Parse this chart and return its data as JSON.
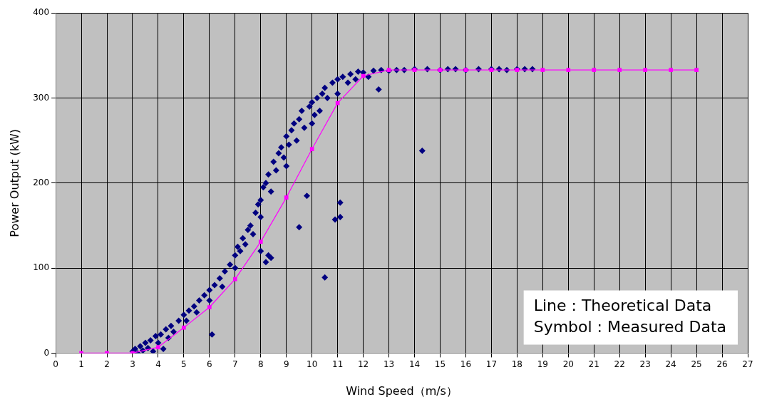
{
  "chart_data": {
    "type": "scatter",
    "xlabel": "Wind Speed（m/s）",
    "ylabel": "Power Output (kW)",
    "xlim": [
      0,
      27
    ],
    "xticks": [
      0,
      1,
      2,
      3,
      4,
      5,
      6,
      7,
      8,
      9,
      10,
      11,
      12,
      13,
      14,
      15,
      16,
      17,
      18,
      19,
      20,
      21,
      22,
      23,
      24,
      25,
      26,
      27
    ],
    "ylim": [
      0,
      400
    ],
    "yticks": [
      0,
      100,
      200,
      300,
      400
    ],
    "grid": true,
    "legend": false,
    "annotations": [
      "Line : Theoretical Data",
      "Symbol : Measured Data"
    ],
    "series": [
      {
        "type": "scatter",
        "color": "#000080",
        "marker": "diamond",
        "x": [
          3.0,
          3.1,
          3.2,
          3.3,
          3.4,
          3.5,
          3.6,
          3.7,
          3.8,
          3.9,
          4.0,
          4.1,
          4.2,
          4.3,
          4.4,
          4.5,
          4.6,
          4.8,
          5.0,
          5.1,
          5.2,
          5.4,
          5.5,
          5.6,
          5.8,
          6.0,
          6.0,
          6.1,
          6.2,
          6.4,
          6.5,
          6.6,
          6.8,
          7.0,
          7.0,
          7.1,
          7.2,
          7.3,
          7.4,
          7.5,
          7.6,
          7.7,
          7.8,
          7.9,
          8.0,
          8.0,
          8.0,
          8.1,
          8.2,
          8.2,
          8.3,
          8.4,
          8.3,
          8.4,
          8.5,
          8.6,
          8.7,
          8.8,
          8.9,
          9.0,
          9.0,
          9.1,
          9.2,
          9.3,
          9.4,
          9.5,
          9.5,
          9.6,
          9.7,
          9.8,
          9.9,
          10.0,
          10.0,
          10.1,
          10.2,
          10.3,
          10.4,
          10.5,
          10.5,
          10.6,
          10.8,
          10.9,
          11.0,
          11.0,
          11.1,
          11.1,
          11.2,
          11.4,
          11.5,
          11.7,
          11.8,
          12.0,
          12.2,
          12.4,
          12.6,
          12.7,
          13.0,
          13.3,
          13.6,
          14.0,
          14.3,
          14.5,
          15.0,
          15.3,
          15.6,
          16.0,
          16.5,
          17.0,
          17.3,
          17.6,
          18.0,
          18.3,
          18.6
        ],
        "values": [
          2,
          5,
          0,
          8,
          3,
          12,
          6,
          15,
          2,
          20,
          12,
          22,
          5,
          28,
          18,
          32,
          25,
          38,
          45,
          38,
          50,
          55,
          48,
          62,
          68,
          74,
          62,
          22,
          80,
          88,
          78,
          96,
          104,
          115,
          100,
          125,
          120,
          135,
          128,
          145,
          150,
          140,
          165,
          175,
          180,
          160,
          120,
          195,
          200,
          107,
          115,
          112,
          210,
          190,
          225,
          215,
          235,
          242,
          230,
          255,
          220,
          245,
          262,
          270,
          250,
          275,
          148,
          285,
          265,
          185,
          290,
          295,
          270,
          280,
          300,
          285,
          305,
          89,
          312,
          300,
          318,
          157,
          322,
          305,
          177,
          160,
          325,
          318,
          328,
          322,
          331,
          330,
          325,
          332,
          310,
          333,
          332,
          333,
          333,
          334,
          238,
          334,
          333,
          334,
          334,
          333,
          334,
          334,
          334,
          333,
          334,
          334,
          334
        ]
      },
      {
        "type": "line",
        "color": "#ff00ff",
        "marker": "square",
        "x": [
          1,
          2,
          3,
          4,
          5,
          6,
          7,
          8,
          9,
          10,
          11,
          12,
          13,
          14,
          15,
          16,
          17,
          18,
          19,
          20,
          21,
          22,
          23,
          24,
          25
        ],
        "values": [
          0,
          0,
          0,
          7,
          30,
          54,
          87,
          131,
          183,
          240,
          294,
          326,
          333,
          333,
          333,
          333,
          333,
          333,
          333,
          333,
          333,
          333,
          333,
          333,
          333
        ]
      }
    ]
  }
}
